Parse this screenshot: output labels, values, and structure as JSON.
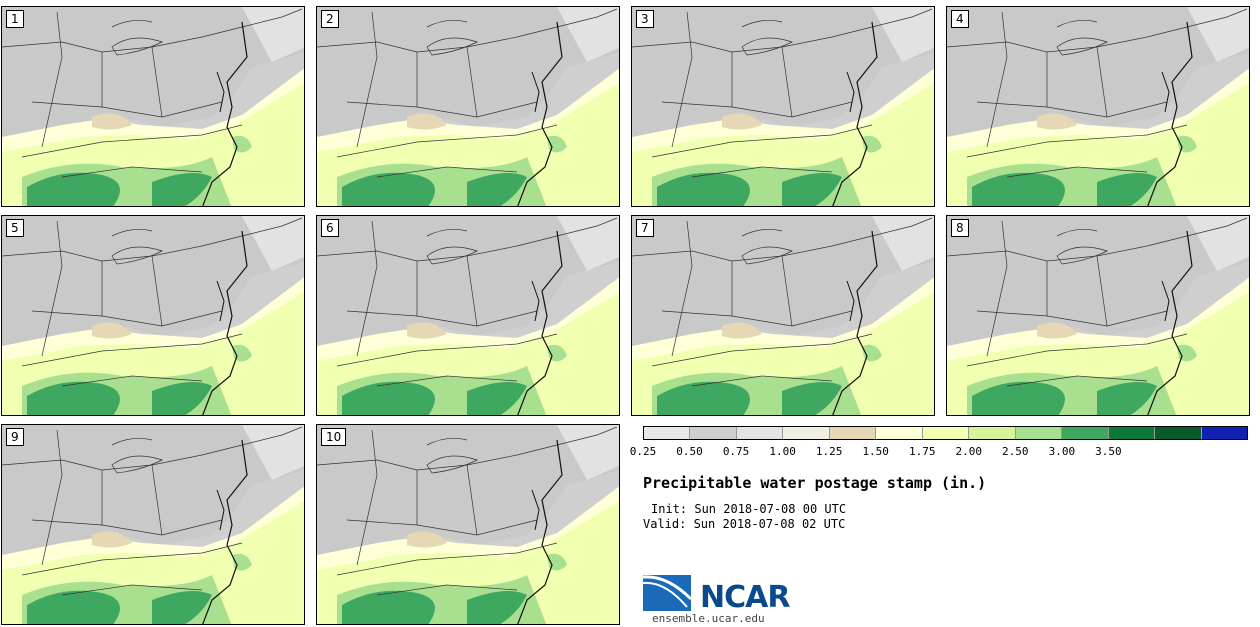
{
  "panels": [
    {
      "label": "1"
    },
    {
      "label": "2"
    },
    {
      "label": "3"
    },
    {
      "label": "4"
    },
    {
      "label": "5"
    },
    {
      "label": "6"
    },
    {
      "label": "7"
    },
    {
      "label": "8"
    },
    {
      "label": "9"
    },
    {
      "label": "10"
    }
  ],
  "colorbar": {
    "colors": [
      "#e8e8e8",
      "#cfcfcf",
      "#e4e4e4",
      "#efefe4",
      "#e6d8b4",
      "#ffffd8",
      "#f0ffb0",
      "#d6f59a",
      "#a8e090",
      "#3fa860",
      "#0b7a38",
      "#0a5a2a",
      "#1020b0"
    ],
    "ticks": [
      "0.25",
      "0.50",
      "0.75",
      "1.00",
      "1.25",
      "1.50",
      "1.75",
      "2.00",
      "2.50",
      "3.00",
      "3.50"
    ]
  },
  "title": "Precipitable water postage stamp (in.)",
  "init": "Init: Sun 2018-07-08 00 UTC",
  "valid": "Valid: Sun 2018-07-08 02 UTC",
  "logo": {
    "text": "NCAR",
    "url": "ensemble.ucar.edu"
  }
}
